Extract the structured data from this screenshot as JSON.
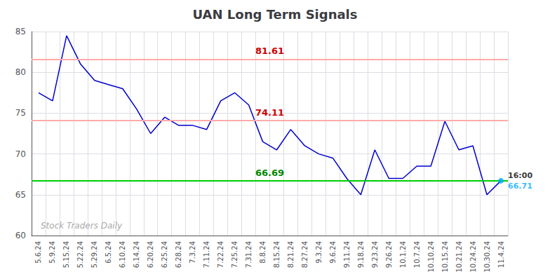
{
  "chart_data": {
    "type": "line",
    "title": "UAN Long Term Signals",
    "categories": [
      "5.6.24",
      "5.9.24",
      "5.15.24",
      "5.22.24",
      "5.29.24",
      "6.5.24",
      "6.10.24",
      "6.14.24",
      "6.20.24",
      "6.25.24",
      "6.28.24",
      "7.3.24",
      "7.11.24",
      "7.22.24",
      "7.25.24",
      "7.31.24",
      "8.8.24",
      "8.15.24",
      "8.21.24",
      "8.27.24",
      "9.3.24",
      "9.6.24",
      "9.11.24",
      "9.18.24",
      "9.23.24",
      "9.26.24",
      "10.1.24",
      "10.7.24",
      "10.10.24",
      "10.15.24",
      "10.21.24",
      "10.24.24",
      "10.30.24",
      "11.4.24"
    ],
    "values": [
      77.5,
      76.5,
      84.5,
      81.0,
      79.0,
      78.5,
      78.0,
      75.5,
      72.5,
      74.5,
      73.5,
      73.5,
      73.0,
      76.5,
      77.5,
      76.0,
      71.5,
      70.5,
      73.0,
      71.0,
      70.0,
      69.5,
      67.0,
      65.0,
      70.5,
      67.0,
      67.0,
      68.5,
      68.5,
      74.0,
      70.5,
      71.0,
      65.0,
      66.71
    ],
    "color": "#0000cc",
    "ylim": [
      60,
      85
    ],
    "yticks": [
      60,
      65,
      70,
      75,
      80,
      85
    ],
    "grid": true,
    "hlines": [
      {
        "value": 81.61,
        "color": "#ffaaaa",
        "label_color": "#cc0000"
      },
      {
        "value": 74.11,
        "color": "#ffaaaa",
        "label_color": "#cc0000"
      },
      {
        "value": 66.69,
        "color": "#00cc00",
        "label_color": "#008800"
      }
    ],
    "last_point": {
      "label": "16:00",
      "color": "#00aaff"
    },
    "watermark": "Stock Traders Daily"
  }
}
